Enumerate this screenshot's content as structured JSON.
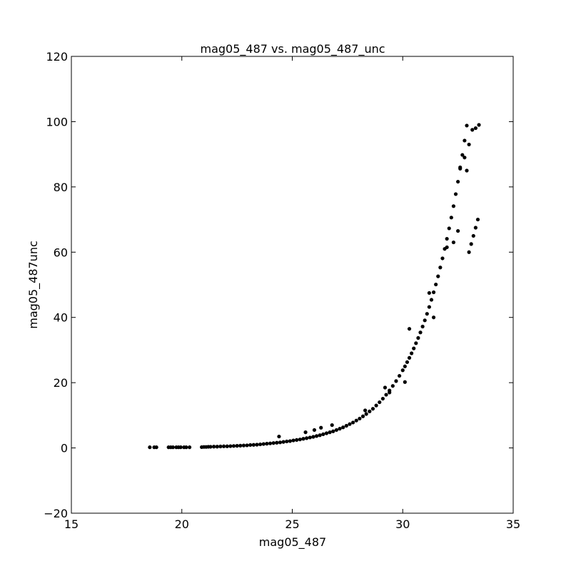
{
  "chart_data": {
    "type": "scatter",
    "title": "mag05_487 vs. mag05_487_unc",
    "xlabel": "mag05_487",
    "ylabel": "mag05_487unc",
    "xlim": [
      15,
      35
    ],
    "ylim": [
      -20,
      120
    ],
    "xticks": [
      "15",
      "20",
      "25",
      "30",
      "35"
    ],
    "yticks": [
      "−20",
      "0",
      "20",
      "40",
      "60",
      "80",
      "100",
      "120"
    ],
    "grid": false,
    "marker_color": "#000000",
    "series": [
      {
        "x": [
          18.55,
          18.75,
          18.85,
          19.4,
          19.5,
          19.6,
          19.75,
          19.85,
          19.95,
          20.1,
          20.2,
          20.35,
          20.9,
          21.0,
          21.1,
          21.2,
          21.3,
          21.45,
          21.6,
          21.75,
          21.9,
          22.05,
          22.2,
          22.35,
          22.5,
          22.65,
          22.8,
          22.95,
          23.1,
          23.25,
          23.4,
          23.55,
          23.7,
          23.85,
          24.0,
          24.15,
          24.3,
          24.45,
          24.6,
          24.75,
          24.9,
          25.05,
          25.2,
          25.35,
          25.5,
          25.65,
          25.8,
          25.95,
          26.1,
          26.25,
          26.4,
          26.55,
          26.7,
          26.85,
          27.0,
          27.15,
          27.3,
          27.45,
          27.6,
          27.75,
          27.9,
          28.05,
          28.2,
          28.35,
          28.5,
          28.65,
          28.8,
          28.95,
          29.1,
          29.25,
          29.4,
          29.55,
          29.7,
          29.85,
          30.0,
          30.1,
          30.2,
          30.3,
          30.4,
          30.5,
          30.6,
          30.7,
          30.8,
          30.9,
          31.0,
          31.1,
          31.2,
          31.3,
          31.4,
          31.5,
          31.6,
          31.7,
          31.8,
          31.9,
          32.0,
          32.1,
          32.2,
          32.3,
          32.4,
          32.5,
          32.6,
          32.7,
          32.8,
          32.9,
          33.0,
          33.1,
          33.2,
          33.3,
          33.4,
          24.4,
          25.6,
          26.0,
          26.3,
          26.8,
          28.3,
          29.2,
          29.4,
          30.1,
          30.3,
          31.2,
          31.4,
          32.0,
          32.3,
          32.5,
          32.6,
          32.8,
          32.9,
          33.0,
          33.15,
          33.3,
          33.45
        ],
        "y": [
          0.2,
          0.2,
          0.2,
          0.2,
          0.2,
          0.2,
          0.2,
          0.2,
          0.2,
          0.2,
          0.2,
          0.2,
          0.25,
          0.3,
          0.3,
          0.35,
          0.35,
          0.4,
          0.4,
          0.45,
          0.5,
          0.5,
          0.55,
          0.6,
          0.65,
          0.7,
          0.75,
          0.8,
          0.9,
          0.95,
          1.0,
          1.1,
          1.2,
          1.3,
          1.4,
          1.5,
          1.6,
          1.7,
          1.85,
          2.0,
          2.1,
          2.3,
          2.45,
          2.6,
          2.8,
          3.0,
          3.2,
          3.4,
          3.65,
          3.9,
          4.2,
          4.5,
          4.8,
          5.1,
          5.5,
          5.9,
          6.3,
          6.8,
          7.3,
          7.8,
          8.4,
          9.0,
          9.7,
          10.4,
          11.2,
          12.0,
          13.0,
          14.0,
          15.1,
          16.3,
          17.6,
          19.0,
          20.5,
          22.1,
          23.8,
          25.0,
          26.3,
          27.6,
          29.0,
          30.5,
          32.1,
          33.7,
          35.4,
          37.2,
          39.1,
          41.1,
          43.2,
          45.4,
          47.7,
          50.1,
          52.6,
          55.3,
          58.1,
          61.0,
          64.1,
          67.3,
          70.6,
          74.1,
          77.8,
          81.6,
          85.6,
          89.8,
          94.2,
          98.8,
          60.0,
          62.5,
          65.0,
          67.5,
          70.0,
          3.5,
          4.8,
          5.5,
          6.2,
          7.0,
          11.5,
          18.5,
          17.0,
          20.2,
          36.5,
          47.5,
          40.0,
          61.5,
          63.0,
          66.5,
          86.0,
          89.0,
          85.0,
          93.0,
          97.5,
          98.0,
          99.0
        ]
      }
    ]
  }
}
